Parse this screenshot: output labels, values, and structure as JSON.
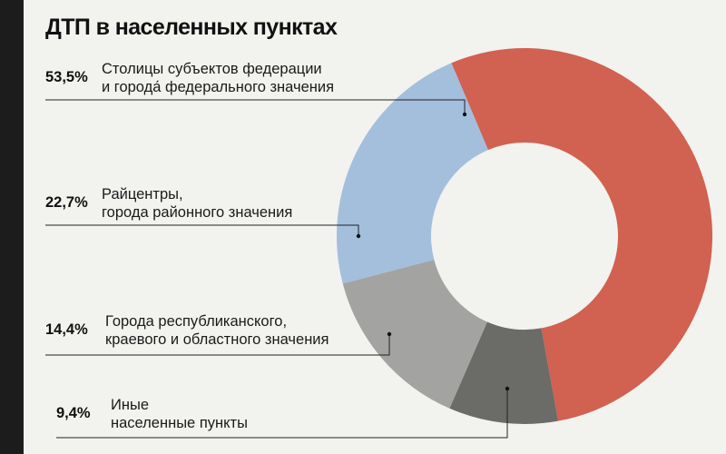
{
  "chart_data": {
    "type": "pie",
    "title": "ДТП в населенных пунктах",
    "slices": [
      {
        "percent_label": "53,5%",
        "value": 53.5,
        "line1": "Столицы субъектов федерации",
        "line2": "и города́ федерального значения",
        "color": "#d16150"
      },
      {
        "percent_label": "9,4%",
        "value": 9.4,
        "line1": "Иные",
        "line2": "населенные пункты",
        "color": "#6b6b67"
      },
      {
        "percent_label": "14,4%",
        "value": 14.4,
        "line1": "Города республиканского,",
        "line2": "краевого и областного значения",
        "color": "#a3a3a1"
      },
      {
        "percent_label": "22,7%",
        "value": 22.7,
        "line1": "Райцентры,",
        "line2": "города районного значения",
        "color": "#a3bfdc"
      }
    ]
  }
}
